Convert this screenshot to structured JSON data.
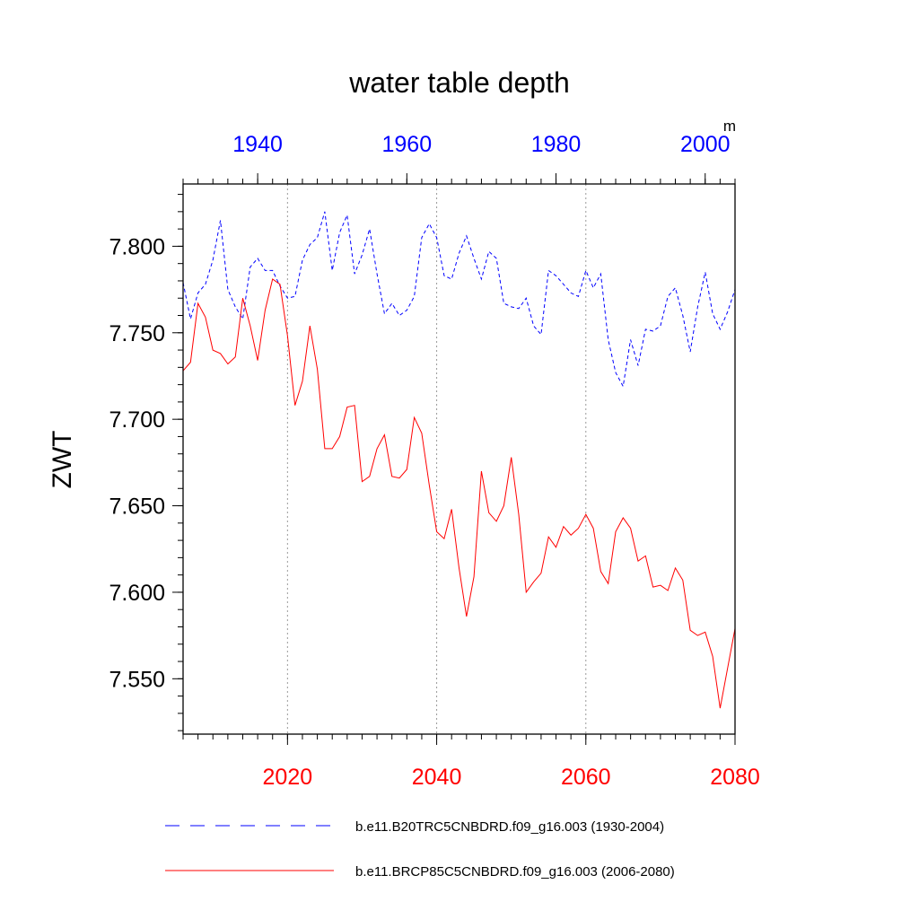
{
  "chart_data": {
    "type": "line",
    "title": "water table depth",
    "ylabel": "ZWT",
    "units": "m",
    "ylim": [
      7.518,
      7.836
    ],
    "yticks": [
      {
        "value": 7.55,
        "label": "7.550"
      },
      {
        "value": 7.6,
        "label": "7.600"
      },
      {
        "value": 7.65,
        "label": "7.650"
      },
      {
        "value": 7.7,
        "label": "7.700"
      },
      {
        "value": 7.75,
        "label": "7.750"
      },
      {
        "value": 7.8,
        "label": "7.800"
      }
    ],
    "y_minor_step": 0.01,
    "top_axis": {
      "color": "#0000ff",
      "range": [
        1930,
        2004
      ],
      "ticks": [
        {
          "value": 1940,
          "label": "1940"
        },
        {
          "value": 1960,
          "label": "1960"
        },
        {
          "value": 1980,
          "label": "1980"
        },
        {
          "value": 2000,
          "label": "2000"
        }
      ],
      "minor_step": 2
    },
    "bottom_axis": {
      "color": "#ff0000",
      "range": [
        2006,
        2080
      ],
      "ticks": [
        {
          "value": 2020,
          "label": "2020"
        },
        {
          "value": 2040,
          "label": "2040"
        },
        {
          "value": 2060,
          "label": "2060"
        },
        {
          "value": 2080,
          "label": "2080"
        }
      ],
      "minor_step": 2
    },
    "vertical_gridlines": [
      2020,
      2040,
      2060
    ],
    "series": [
      {
        "name": "b.e11.B20TRC5CNBDRD.f09_g16.003 (1930-2004)",
        "axis": "top",
        "color": "#0000ff",
        "dash": "dashed",
        "x_start": 1930,
        "values": [
          7.779,
          7.758,
          7.773,
          7.778,
          7.792,
          7.815,
          7.775,
          7.765,
          7.758,
          7.788,
          7.793,
          7.786,
          7.786,
          7.777,
          7.77,
          7.771,
          7.792,
          7.801,
          7.805,
          7.82,
          7.786,
          7.808,
          7.818,
          7.784,
          7.795,
          7.81,
          7.784,
          7.761,
          7.767,
          7.76,
          7.763,
          7.771,
          7.805,
          7.813,
          7.805,
          7.783,
          7.781,
          7.796,
          7.806,
          7.793,
          7.781,
          7.797,
          7.793,
          7.767,
          7.765,
          7.764,
          7.77,
          7.754,
          7.749,
          7.786,
          7.783,
          7.778,
          7.773,
          7.771,
          7.786,
          7.776,
          7.784,
          7.746,
          7.727,
          7.719,
          7.746,
          7.731,
          7.752,
          7.751,
          7.754,
          7.771,
          7.776,
          7.76,
          7.739,
          7.765,
          7.785,
          7.761,
          7.752,
          7.762,
          7.775
        ]
      },
      {
        "name": "b.e11.BRCP85C5CNBDRD.f09_g16.003 (2006-2080)",
        "axis": "bottom",
        "color": "#ff0000",
        "dash": "solid",
        "x_start": 2006,
        "values": [
          7.728,
          7.733,
          7.767,
          7.759,
          7.74,
          7.738,
          7.732,
          7.736,
          7.77,
          7.754,
          7.734,
          7.763,
          7.781,
          7.778,
          7.748,
          7.708,
          7.722,
          7.754,
          7.729,
          7.683,
          7.683,
          7.69,
          7.707,
          7.708,
          7.664,
          7.667,
          7.683,
          7.691,
          7.667,
          7.666,
          7.671,
          7.701,
          7.692,
          7.662,
          7.635,
          7.631,
          7.648,
          7.614,
          7.586,
          7.609,
          7.67,
          7.646,
          7.641,
          7.65,
          7.678,
          7.645,
          7.6,
          7.606,
          7.611,
          7.632,
          7.626,
          7.638,
          7.633,
          7.637,
          7.645,
          7.637,
          7.612,
          7.605,
          7.635,
          7.643,
          7.637,
          7.618,
          7.621,
          7.603,
          7.604,
          7.601,
          7.614,
          7.607,
          7.578,
          7.575,
          7.577,
          7.563,
          7.533,
          7.556,
          7.579
        ]
      }
    ],
    "legend_position": "bottom"
  }
}
